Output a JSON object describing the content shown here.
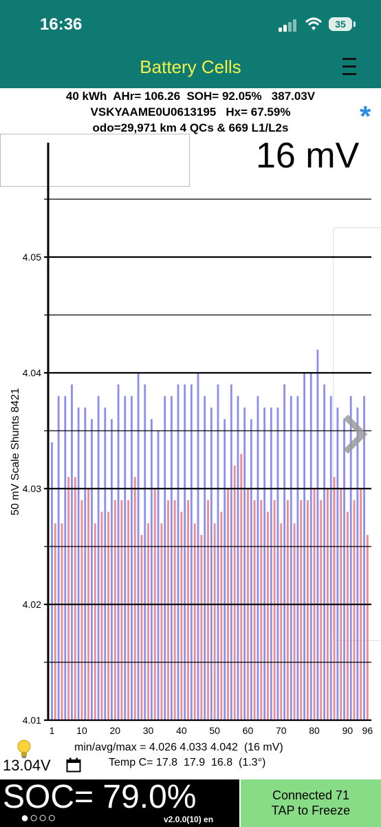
{
  "status_bar": {
    "time": "16:36",
    "battery_percent": "35",
    "icons": [
      "cellular-signal-icon",
      "wifi-icon",
      "battery-icon"
    ]
  },
  "app_bar": {
    "title": "Battery Cells",
    "menu_icon": "hamburger-menu-icon"
  },
  "info": {
    "line1": "40 kWh  AHr= 106.26  SOH= 92.05%   387.03V",
    "line2": "VSKYAAME0U0613195   Hx= 67.59%",
    "line3": "odo=29,971 km 4 QCs & 669 L1/L2s",
    "asterisk": "*"
  },
  "spread_label": "16 mV",
  "y_axis_label": "50 mV Scale   Shunts 8421",
  "footer": {
    "stats": "min/avg/max = 4.026 4.033 4.042  (16 mV)",
    "temp": "Temp C= 17.8  17.9  16.8  (1.3°)",
    "aux_voltage": "13.04V",
    "soc": "SOC= 79.0%",
    "page_dots": "●○○○",
    "version": "v2.0.0(10) en",
    "connected": "Connected 71",
    "tap_freeze": "TAP to Freeze"
  },
  "colors": {
    "teal": "#0f7a72",
    "title_yellow": "#f4f24a",
    "bar_red": "#ef8a8a",
    "bar_blue": "#8b8ef0",
    "connect_green": "#89dc86",
    "asterisk_blue": "#2a8de8"
  },
  "chart_data": {
    "type": "bar",
    "ylim": [
      4.01,
      4.06
    ],
    "y_ticks": [
      4.01,
      4.02,
      4.03,
      4.04,
      4.05
    ],
    "x_ticks": [
      1,
      10,
      20,
      30,
      40,
      50,
      60,
      70,
      80,
      90,
      96
    ],
    "series": [
      {
        "values": [
          4.034,
          4.027,
          4.038,
          4.027,
          4.038,
          4.031,
          4.039,
          4.031,
          4.037,
          4.029,
          4.037,
          4.03,
          4.036,
          4.027,
          4.038,
          4.028,
          4.037,
          4.028,
          4.036,
          4.029,
          4.039,
          4.029,
          4.038,
          4.029,
          4.038,
          4.031,
          4.04,
          4.026,
          4.039,
          4.027,
          4.036,
          4.03,
          4.035,
          4.027,
          4.038,
          4.029,
          4.038,
          4.029,
          4.039,
          4.028,
          4.039,
          4.029,
          4.039,
          4.027,
          4.04,
          4.026,
          4.038,
          4.029,
          4.037,
          4.027,
          4.039,
          4.028,
          4.036,
          4.03,
          4.039,
          4.032,
          4.038,
          4.033,
          4.037,
          4.03,
          4.036,
          4.029,
          4.038,
          4.029,
          4.037,
          4.028,
          4.037,
          4.029,
          4.037,
          4.027,
          4.039,
          4.029,
          4.038,
          4.027,
          4.038,
          4.029,
          4.04,
          4.029,
          4.04,
          4.03,
          4.042,
          4.029,
          4.039,
          4.03,
          4.038,
          4.031,
          4.037,
          4.03,
          4.036,
          4.028,
          4.038,
          4.029,
          4.037,
          4.03,
          4.038,
          4.026
        ]
      }
    ]
  }
}
